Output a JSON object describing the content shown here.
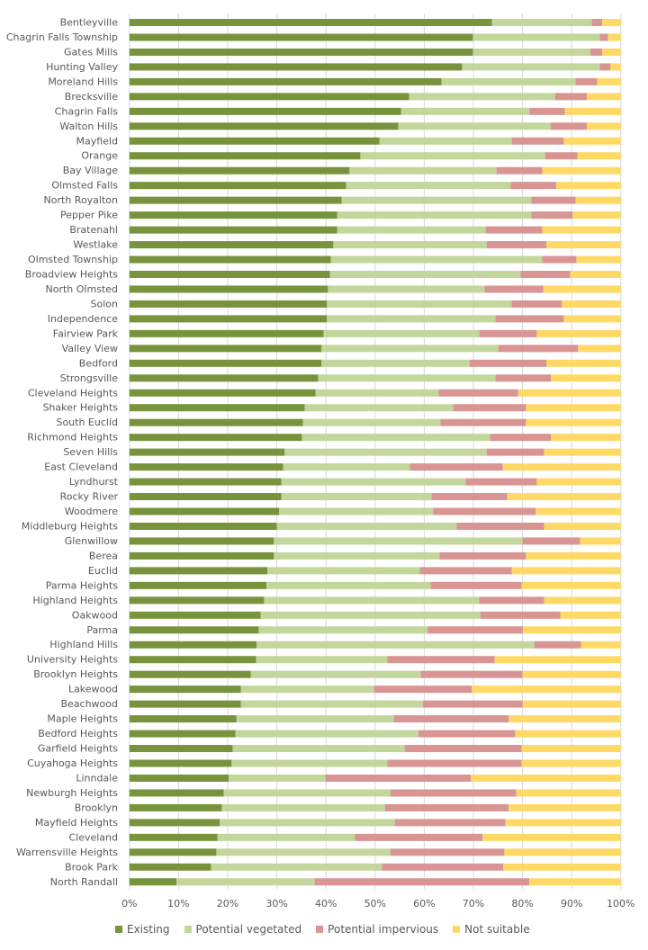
{
  "chart_data": {
    "type": "bar",
    "orientation": "horizontal",
    "stacked": "percent",
    "title": "",
    "xlabel": "",
    "ylabel": "",
    "xlim": [
      0,
      100
    ],
    "x_ticks": [
      "0%",
      "10%",
      "20%",
      "30%",
      "40%",
      "50%",
      "60%",
      "70%",
      "80%",
      "90%",
      "100%"
    ],
    "grid": "vertical",
    "legend_position": "bottom",
    "categories": [
      "Bentleyville",
      "Chagrin Falls Township",
      "Gates Mills",
      "Hunting Valley",
      "Moreland Hills",
      "Brecksville",
      "Chagrin Falls",
      "Walton Hills",
      "Mayfield",
      "Orange",
      "Bay Village",
      "Olmsted Falls",
      "North Royalton",
      "Pepper Pike",
      "Bratenahl",
      "Westlake",
      "Olmsted Township",
      "Broadview Heights",
      "North Olmsted",
      "Solon",
      "Independence",
      "Fairview Park",
      "Valley View",
      "Bedford",
      "Strongsville",
      "Cleveland Heights",
      "Shaker Heights",
      "South Euclid",
      "Richmond Heights",
      "Seven Hills",
      "East Cleveland",
      "Lyndhurst",
      "Rocky River",
      "Woodmere",
      "Middleburg Heights",
      "Glenwillow",
      "Berea",
      "Euclid",
      "Parma Heights",
      "Highland Heights",
      "Oakwood",
      "Parma",
      "Highland Hills",
      "University Heights",
      "Brooklyn Heights",
      "Lakewood",
      "Beachwood",
      "Maple Heights",
      "Bedford Heights",
      "Garfield Heights",
      "Cuyahoga Heights",
      "Linndale",
      "Newburgh Heights",
      "Brooklyn",
      "Mayfield Heights",
      "Cleveland",
      "Warrensville Heights",
      "Brook Park",
      "North Randall"
    ],
    "series": [
      {
        "name": "Existing",
        "color": "#77933C",
        "values": [
          73.8,
          69.9,
          69.9,
          67.7,
          63.5,
          56.9,
          55.3,
          54.7,
          50.9,
          47.0,
          44.8,
          44.1,
          43.2,
          42.3,
          42.3,
          41.5,
          41.0,
          40.8,
          40.4,
          40.2,
          40.2,
          39.5,
          39.1,
          39.1,
          38.4,
          37.9,
          35.7,
          35.3,
          35.1,
          31.6,
          31.3,
          30.9,
          30.9,
          30.5,
          30.0,
          29.4,
          29.4,
          28.1,
          27.9,
          27.4,
          26.7,
          26.3,
          25.9,
          25.8,
          24.7,
          22.7,
          22.7,
          21.8,
          21.6,
          21.0,
          20.8,
          20.2,
          19.2,
          18.8,
          18.4,
          17.9,
          17.7,
          16.6,
          9.6
        ]
      },
      {
        "name": "Potential vegetated",
        "color": "#C3D69B",
        "values": [
          20.3,
          25.8,
          23.9,
          28.0,
          27.3,
          29.7,
          26.1,
          31.0,
          26.9,
          37.6,
          29.9,
          33.5,
          38.6,
          39.5,
          30.2,
          31.2,
          43.0,
          38.8,
          31.9,
          37.6,
          34.3,
          31.7,
          36.0,
          30.1,
          36.1,
          25.0,
          30.2,
          28.0,
          38.3,
          41.1,
          25.8,
          37.5,
          30.6,
          31.3,
          36.6,
          50.6,
          33.7,
          31.0,
          33.4,
          43.8,
          44.7,
          34.4,
          56.5,
          26.7,
          34.6,
          27.1,
          37.0,
          32.0,
          37.2,
          35.0,
          31.7,
          19.7,
          33.9,
          33.2,
          35.6,
          28.0,
          35.4,
          34.8,
          28.1
        ]
      },
      {
        "name": "Potential impervious",
        "color": "#D99594",
        "values": [
          2.1,
          1.7,
          2.4,
          2.2,
          4.4,
          6.5,
          7.2,
          7.4,
          10.6,
          6.6,
          9.3,
          9.3,
          9.0,
          8.4,
          11.5,
          12.2,
          7.0,
          10.1,
          11.9,
          10.2,
          13.9,
          11.7,
          16.2,
          15.7,
          11.3,
          16.2,
          14.8,
          17.4,
          12.4,
          11.7,
          18.9,
          14.5,
          15.4,
          20.9,
          17.8,
          11.7,
          17.6,
          18.7,
          18.5,
          13.2,
          16.3,
          19.4,
          9.5,
          21.8,
          20.7,
          19.9,
          20.3,
          23.4,
          19.7,
          23.8,
          27.3,
          29.6,
          25.6,
          25.2,
          22.5,
          26.0,
          23.2,
          24.7,
          43.7
        ]
      },
      {
        "name": "Not suitable",
        "color": "#FFD966",
        "values": [
          3.8,
          2.6,
          3.8,
          2.1,
          4.8,
          6.9,
          11.4,
          6.9,
          11.6,
          8.8,
          16.0,
          13.1,
          9.2,
          9.8,
          16.0,
          15.1,
          9.0,
          10.3,
          15.8,
          12.0,
          11.6,
          17.1,
          8.7,
          15.1,
          14.2,
          20.9,
          19.3,
          19.3,
          14.2,
          15.6,
          24.0,
          17.1,
          23.1,
          17.3,
          15.6,
          8.3,
          19.3,
          22.2,
          20.2,
          15.6,
          12.3,
          19.9,
          8.1,
          25.7,
          20.0,
          30.3,
          20.0,
          22.8,
          21.5,
          20.2,
          20.2,
          30.5,
          21.3,
          22.8,
          23.5,
          28.1,
          23.7,
          23.9,
          18.6
        ]
      }
    ]
  }
}
